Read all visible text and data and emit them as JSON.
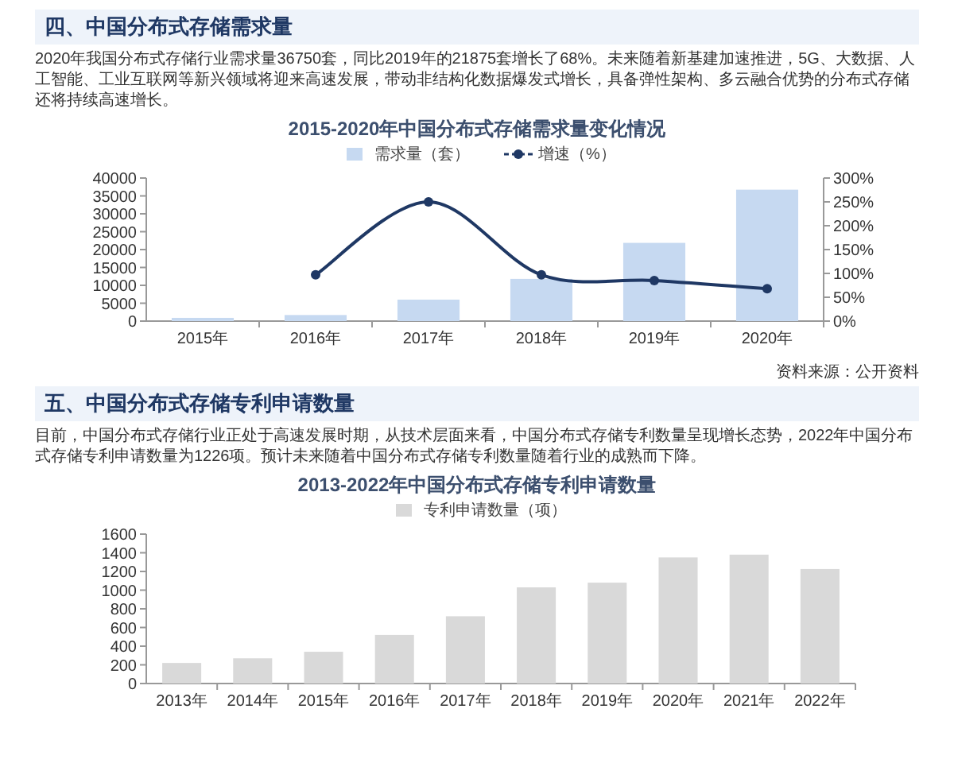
{
  "chart_data": [
    {
      "type": "bar",
      "title": "2015-2020年中国分布式存储需求量变化情况",
      "categories": [
        "2015年",
        "2016年",
        "2017年",
        "2018年",
        "2019年",
        "2020年"
      ],
      "series": [
        {
          "name": "需求量（套）",
          "color": "#c6d9f1",
          "values": [
            900,
            1700,
            6000,
            11800,
            21875,
            36750
          ]
        },
        {
          "name": "增速（%）",
          "type": "line",
          "axis": "y2",
          "color": "#1f3864",
          "marker": "circle",
          "values": [
            null,
            97,
            250,
            97,
            85,
            68
          ]
        }
      ],
      "ylim": [
        0,
        40000
      ],
      "yticks": [
        0,
        5000,
        10000,
        15000,
        20000,
        25000,
        30000,
        35000,
        40000
      ],
      "y2lim": [
        0,
        300
      ],
      "y2ticks": [
        {
          "value": 0,
          "label": "0%"
        },
        {
          "value": 50,
          "label": "50%"
        },
        {
          "value": 100,
          "label": "100%"
        },
        {
          "value": 150,
          "label": "150%"
        },
        {
          "value": 200,
          "label": "200%"
        },
        {
          "value": 250,
          "label": "250%"
        },
        {
          "value": 300,
          "label": "300%"
        }
      ],
      "legend": "top",
      "annotations": [
        "四、中国分布式存储需求量",
        "2020年我国分布式存储行业需求量36750套，同比2019年的21875套增长了68%。未来随着新基建加速推进，5G、大数据、人工智能、工业互联网等新兴领域将迎来高速发展，带动非结构化数据爆发式增长，具备弹性架构、多云融合优势的分布式存储还将持续高速增长。",
        "资料来源：公开资料"
      ]
    },
    {
      "type": "bar",
      "title": "2013-2022年中国分布式存储专利申请数量",
      "categories": [
        "2013年",
        "2014年",
        "2015年",
        "2016年",
        "2017年",
        "2018年",
        "2019年",
        "2020年",
        "2021年",
        "2022年"
      ],
      "series": [
        {
          "name": "专利申请数量（项）",
          "color": "#d9d9d9",
          "values": [
            220,
            270,
            340,
            520,
            720,
            1030,
            1080,
            1350,
            1380,
            1226
          ]
        }
      ],
      "ylim": [
        0,
        1600
      ],
      "yticks": [
        0,
        200,
        400,
        600,
        800,
        1000,
        1200,
        1400,
        1600
      ],
      "legend": "top",
      "annotations": [
        "五、中国分布式存储专利申请数量",
        "目前，中国分布式存储行业正处于高速发展时期，从技术层面来看，中国分布式存储专利数量呈现增长态势，2022年中国分布式存储专利申请数量为1226项。预计未来随着中国分布式存储专利数量随着行业的成熟而下降。"
      ]
    }
  ]
}
